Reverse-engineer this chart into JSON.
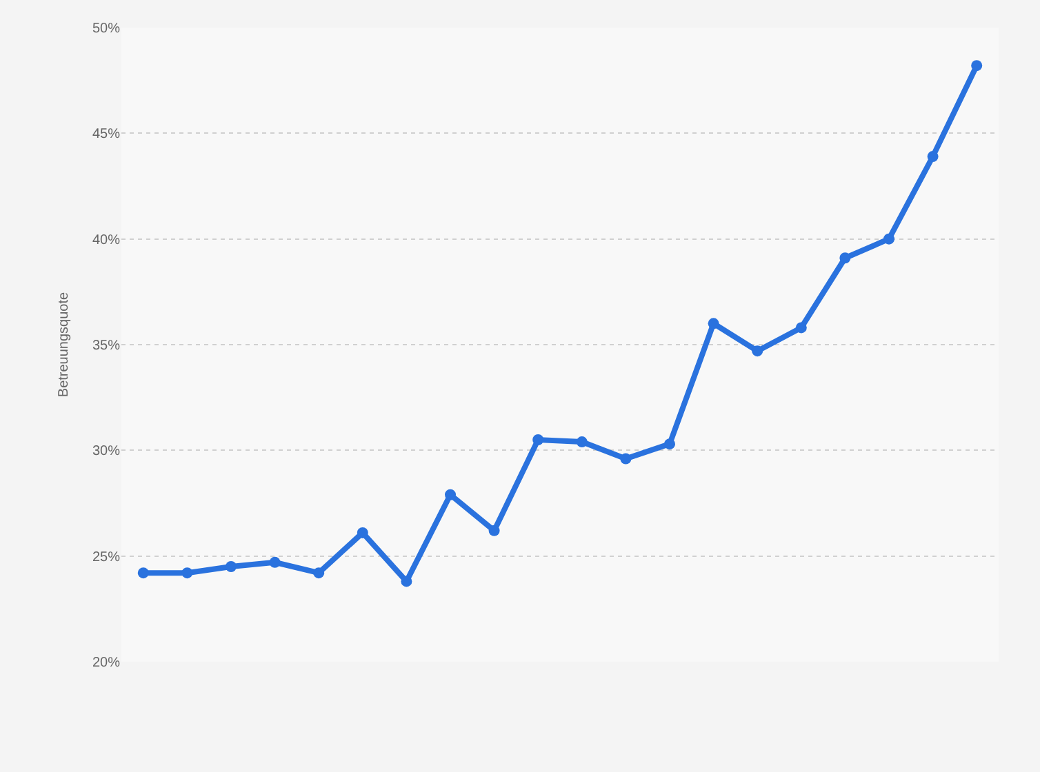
{
  "chart_data": {
    "type": "line",
    "ylabel": "Betreuungsquote",
    "categories": [
      null,
      null,
      null,
      null,
      null,
      null,
      null,
      null,
      null,
      null,
      null,
      null,
      null,
      null,
      null,
      null,
      null,
      null,
      null,
      null
    ],
    "series": [
      {
        "color": "#2a72de",
        "values": [
          24.2,
          24.2,
          24.5,
          24.7,
          24.2,
          26.1,
          23.8,
          27.9,
          26.2,
          30.5,
          30.4,
          29.6,
          30.3,
          36.0,
          34.7,
          35.8,
          39.1,
          40.0,
          43.9,
          48.2
        ]
      }
    ],
    "ylim": [
      20,
      50
    ],
    "yticks": [
      {
        "value": 20,
        "label": "20%"
      },
      {
        "value": 25,
        "label": "25%"
      },
      {
        "value": 30,
        "label": "30%"
      },
      {
        "value": 35,
        "label": "35%"
      },
      {
        "value": 40,
        "label": "40%"
      },
      {
        "value": 45,
        "label": "45%"
      },
      {
        "value": 50,
        "label": "50%"
      }
    ],
    "grid": "y",
    "marker": "circle",
    "line_style": "solid",
    "tick_labels": "y"
  }
}
